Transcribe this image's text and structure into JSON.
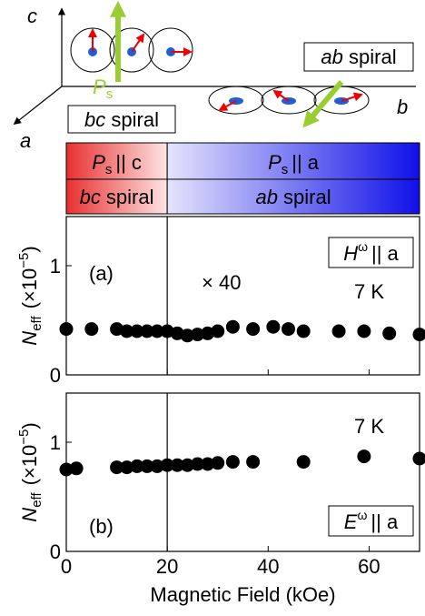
{
  "schematic": {
    "axis_c": "c",
    "axis_a": "a",
    "axis_b": "b",
    "polarization": {
      "symbol": "P",
      "subscript": "s"
    },
    "ab_box": {
      "kind": "ab",
      "word": "spiral"
    },
    "bc_box": {
      "kind": "bc",
      "word": "spiral"
    }
  },
  "phase_bar": [
    {
      "polarization": {
        "symbol": "P",
        "subscript": "s",
        "relation": "|| c"
      },
      "spiral": {
        "kind": "bc",
        "word": "spiral"
      }
    },
    {
      "polarization": {
        "symbol": "P",
        "subscript": "s",
        "relation": "|| a"
      },
      "spiral": {
        "kind": "ab",
        "word": "spiral"
      }
    }
  ],
  "chart_data": [
    {
      "type": "scatter",
      "panel_label": "(a)",
      "annotation": "× 40",
      "temperature": "7 K",
      "field_box": {
        "symbol": "H",
        "superscript": "ω",
        "relation": "|| a"
      },
      "y_label": {
        "symbol": "N",
        "subscript": "eff",
        "unit": "(×10",
        "exponent": "−5",
        "close": ")"
      },
      "x": [
        0,
        5,
        10,
        12,
        14,
        16,
        18,
        20,
        22,
        24,
        26,
        28,
        30,
        33,
        37,
        41,
        44,
        47,
        54,
        59,
        64,
        70
      ],
      "series": [
        {
          "name": "N_eff",
          "color": "#000000",
          "values": [
            0.42,
            0.42,
            0.42,
            0.4,
            0.4,
            0.4,
            0.4,
            0.4,
            0.38,
            0.36,
            0.37,
            0.38,
            0.4,
            0.44,
            0.42,
            0.44,
            0.42,
            0.4,
            0.4,
            0.4,
            0.38,
            0.37
          ]
        }
      ],
      "xlim": [
        0,
        70
      ],
      "ylim": [
        0,
        1.45
      ],
      "xticks": [
        0,
        20,
        40,
        60
      ],
      "yticks": [
        0,
        1
      ],
      "phase_boundary": 20
    },
    {
      "type": "scatter",
      "panel_label": "(b)",
      "temperature": "7 K",
      "field_box": {
        "symbol": "E",
        "superscript": "ω",
        "relation": "|| a"
      },
      "y_label": {
        "symbol": "N",
        "subscript": "eff",
        "unit": "(×10",
        "exponent": "−5",
        "close": ")"
      },
      "x_label": "Magnetic Field (kOe)",
      "x": [
        0,
        2,
        10,
        12,
        14,
        16,
        18,
        20,
        22,
        24,
        26,
        28,
        30,
        33,
        37,
        47,
        59,
        70
      ],
      "series": [
        {
          "name": "N_eff",
          "color": "#000000",
          "values": [
            0.75,
            0.76,
            0.77,
            0.77,
            0.78,
            0.78,
            0.78,
            0.79,
            0.79,
            0.79,
            0.8,
            0.8,
            0.81,
            0.82,
            0.82,
            0.82,
            0.87,
            0.85
          ]
        }
      ],
      "xlim": [
        0,
        70
      ],
      "ylim": [
        0,
        1.45
      ],
      "xticks": [
        0,
        20,
        40,
        60
      ],
      "yticks": [
        0,
        1
      ],
      "phase_boundary": 20
    }
  ]
}
